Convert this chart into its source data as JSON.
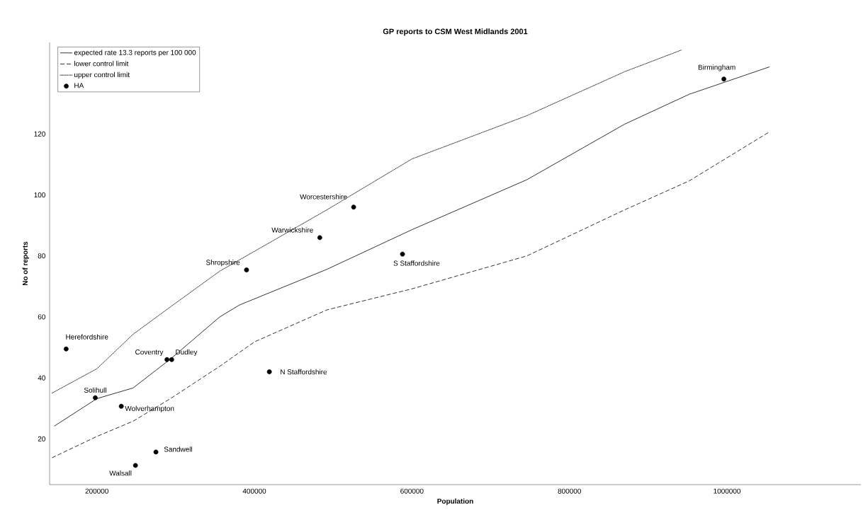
{
  "chart_data": {
    "type": "line",
    "title": "GP reports to CSM West Midlands 2001",
    "xlabel": "Population",
    "ylabel": "No of reports",
    "xlim": [
      140000,
      1170000
    ],
    "ylim": [
      5,
      150
    ],
    "xticks": [
      200000,
      400000,
      600000,
      800000,
      1000000
    ],
    "yticks": [
      20,
      40,
      60,
      80,
      100,
      120
    ],
    "grid": false,
    "legend": "top left",
    "series": [
      {
        "name": "expected rate 13.3 reports per 100 000",
        "color": "#000000",
        "line_style": "solid",
        "marker": "none",
        "x": [
          146000,
          200000,
          246000,
          294000,
          356000,
          381000,
          492000,
          600000,
          746000,
          870000,
          952000,
          1054000
        ],
        "values": [
          24.2,
          33.2,
          36.7,
          46.3,
          60,
          63.9,
          75.6,
          88.6,
          105,
          123.2,
          133,
          142
        ]
      },
      {
        "name": "lower control limit",
        "color": "#000000",
        "line_style": "dashed",
        "marker": "none",
        "x": [
          143000,
          200000,
          246000,
          294000,
          356000,
          400000,
          492000,
          600000,
          746000,
          870000,
          952000,
          1054000
        ],
        "values": [
          13.8,
          20.8,
          25.8,
          33.3,
          43.8,
          51.8,
          62.3,
          69.2,
          80,
          95.1,
          104.6,
          120.7
        ]
      },
      {
        "name": "upper control limit",
        "color": "#000000",
        "line_style": "dotted",
        "marker": "none",
        "x": [
          143000,
          200000,
          246000,
          294000,
          356000,
          492000,
          600000,
          746000,
          870000,
          942000
        ],
        "values": [
          35,
          43,
          54.3,
          63.4,
          75,
          95.1,
          111.8,
          126,
          140.4,
          147.5
        ]
      },
      {
        "name": "HA",
        "type": "scatter",
        "color": "#000000",
        "marker": "circle",
        "x": [
          161000,
          198000,
          231000,
          249000,
          275000,
          289000,
          295000,
          390000,
          419000,
          483000,
          526000,
          588000,
          996000
        ],
        "values": [
          49.5,
          33.5,
          30.7,
          11.3,
          15.7,
          46,
          46,
          75.4,
          42,
          86,
          96,
          80.6,
          138
        ]
      }
    ],
    "annotations": [
      {
        "text": "Herefordshire",
        "x": 161000,
        "y": 49.5
      },
      {
        "text": "Solihull",
        "x": 198000,
        "y": 33.5
      },
      {
        "text": "Wolverhampton",
        "x": 231000,
        "y": 30.7
      },
      {
        "text": "Walsall",
        "x": 249000,
        "y": 11.3
      },
      {
        "text": "Sandwell",
        "x": 275000,
        "y": 15.7
      },
      {
        "text": "Coventry",
        "x": 289000,
        "y": 46
      },
      {
        "text": "Dudley",
        "x": 295000,
        "y": 46
      },
      {
        "text": "Shropshire",
        "x": 390000,
        "y": 75.4
      },
      {
        "text": "N Staffordshire",
        "x": 419000,
        "y": 42
      },
      {
        "text": "Warwickshire",
        "x": 483000,
        "y": 86
      },
      {
        "text": "Worcestershire",
        "x": 526000,
        "y": 96
      },
      {
        "text": "S Staffordshire",
        "x": 588000,
        "y": 80.6
      },
      {
        "text": "Birmingham",
        "x": 996000,
        "y": 138
      }
    ]
  }
}
